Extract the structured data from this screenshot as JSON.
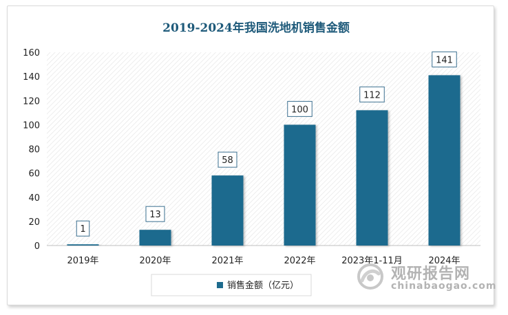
{
  "chart_data": {
    "type": "bar",
    "title": "2019-2024年我国洗地机销售金额",
    "categories": [
      "2019年",
      "2020年",
      "2021年",
      "2022年",
      "2023年1-11月",
      "2024年"
    ],
    "series": [
      {
        "name": "销售金额（亿元）",
        "values": [
          1,
          13,
          58,
          100,
          112,
          141
        ]
      }
    ],
    "data_labels": [
      "1",
      "13",
      "58",
      "100",
      "112",
      "141"
    ],
    "ylim": [
      0,
      160
    ],
    "yticks": [
      0,
      20,
      40,
      60,
      80,
      100,
      120,
      140,
      160
    ],
    "xlabel": "",
    "ylabel": "",
    "legend_position": "bottom",
    "grid": false
  },
  "colors": {
    "bar": "#1d6b8e",
    "title": "#1e5a7a",
    "axis_text": "#222222"
  },
  "watermark": {
    "cn": "观研报告网",
    "en": "chinabaogao.com",
    "icon": "watermark-logo-icon"
  }
}
